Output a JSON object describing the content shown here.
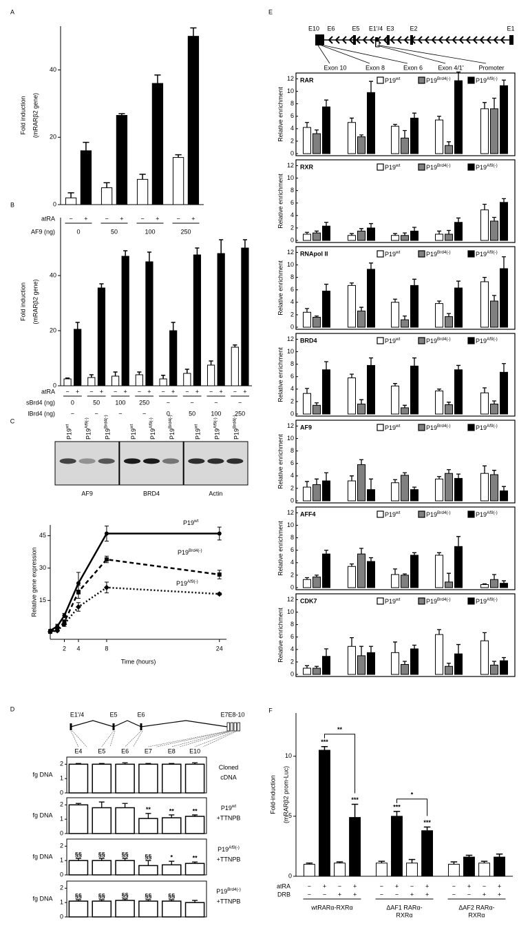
{
  "panel_labels": [
    "A",
    "B",
    "C",
    "D",
    "E",
    "F"
  ],
  "chart_data": [
    {
      "type": "bar",
      "y_label": [
        "Fold induction",
        "(mRARβ2 gene)"
      ],
      "ylim": [
        0,
        53
      ],
      "yticks": [
        0,
        20,
        40
      ],
      "series": [
        {
          "color": "#ffffff",
          "values": [
            2,
            5,
            7.5,
            14
          ],
          "errors": [
            1.5,
            1.5,
            1.5,
            0.8
          ]
        },
        {
          "color": "#000000",
          "values": [
            16,
            26.5,
            36,
            50
          ],
          "errors": [
            2.5,
            0.5,
            2.5,
            2.5
          ]
        }
      ],
      "rows": [
        {
          "label": "atRA",
          "cells": [
            "−",
            "+",
            "−",
            "+",
            "−",
            "+",
            "−",
            "+"
          ]
        },
        {
          "label": "AF9 (ng)",
          "groups": [
            "0",
            "50",
            "100",
            "250"
          ]
        }
      ]
    },
    {
      "type": "bar",
      "y_label": [
        "Fold induction",
        "(mRARβ2 gene)"
      ],
      "ylim": [
        0,
        61
      ],
      "yticks": [
        0,
        20,
        40
      ],
      "series": [
        {
          "color": "#ffffff",
          "values": [
            2.5,
            3,
            3.5,
            4,
            2.5,
            4.5,
            7.5,
            14
          ],
          "errors": [
            0.3,
            1,
            1.5,
            1,
            1.3,
            1.5,
            1.5,
            0.8
          ]
        },
        {
          "color": "#000000",
          "values": [
            20.5,
            35.5,
            47,
            45,
            20,
            47.5,
            48,
            50
          ],
          "errors": [
            2.5,
            1.5,
            2,
            3.5,
            3,
            2.5,
            5,
            3
          ]
        }
      ],
      "rows": [
        {
          "label": "atRA",
          "cells": [
            "−",
            "+",
            "−",
            "+",
            "−",
            "+",
            "−",
            "+",
            "−",
            "+",
            "−",
            "+",
            "−",
            "+",
            "−",
            "+"
          ]
        },
        {
          "label": "sBrd4 (ng)",
          "groups": [
            "0",
            "50",
            "100",
            "250",
            "−",
            "−",
            "−",
            "−"
          ]
        },
        {
          "label": "lBrd4 (ng)",
          "groups": [
            "−",
            "−",
            "−",
            "−",
            "0",
            "50",
            "100",
            "250"
          ]
        }
      ]
    },
    {
      "type": "line",
      "blot": {
        "lanes": [
          {
            "name": "P19",
            "superscript": "wt"
          },
          {
            "name": "P19",
            "superscript": "Af9(-)"
          },
          {
            "name": "P19",
            "superscript": "Brd4(-)"
          }
        ],
        "panels": [
          "AF9",
          "BRD4",
          "Actin"
        ]
      },
      "x": [
        0,
        1,
        2,
        4,
        8,
        24
      ],
      "xlim": [
        0,
        25
      ],
      "xticks": [
        2,
        4,
        8,
        24
      ],
      "ylim": [
        -3,
        50
      ],
      "yticks": [
        15,
        30,
        45
      ],
      "x_label": "Time (hours)",
      "y_label": "Relative gene expression",
      "series": [
        {
          "name": "P19",
          "superscript": "wt",
          "color": "#000000",
          "dash": "solid",
          "marker": "circle",
          "values": [
            1,
            3,
            8,
            23,
            46,
            46
          ],
          "errors": [
            0.5,
            1,
            1,
            5,
            3.5,
            3
          ]
        },
        {
          "name": "P19",
          "superscript": "Brd4(-)",
          "color": "#000000",
          "dash": "dashed",
          "marker": "square",
          "values": [
            0.5,
            1.5,
            5,
            19,
            34,
            27
          ],
          "errors": [
            0.3,
            0.5,
            1,
            3,
            1.5,
            2
          ]
        },
        {
          "name": "P19",
          "superscript": "Af9(-)",
          "color": "#000000",
          "dash": "dotted",
          "marker": "diamond",
          "values": [
            0.5,
            1,
            4,
            12,
            21,
            18
          ],
          "errors": [
            0.3,
            0.5,
            1,
            2,
            2.5,
            0.5
          ]
        }
      ]
    },
    {
      "type": "bar_rows",
      "gene_labels": [
        "E1'/4",
        "E5",
        "E6",
        "E7E8-10"
      ],
      "categories": [
        "E4",
        "E5",
        "E6",
        "E7",
        "E8",
        "E10"
      ],
      "y_label": "fg DNA",
      "ylim": [
        0,
        2.4
      ],
      "yticks": [
        0,
        1,
        2
      ],
      "rows": [
        {
          "label": {
            "name": "Cloned",
            "suffix": "cDNA"
          },
          "values": [
            2,
            2,
            2,
            2,
            2,
            2
          ],
          "errors": [
            0.05,
            0.05,
            0.1,
            0.05,
            0.05,
            0.1
          ]
        },
        {
          "label": {
            "name": "P19",
            "superscript": "wt",
            "suffix": "+TTNPB"
          },
          "values": [
            2,
            1.8,
            1.8,
            1.05,
            1.1,
            1.2
          ],
          "errors": [
            0.1,
            0.4,
            0.3,
            0.35,
            0.2,
            0.1
          ],
          "annotations": [
            null,
            null,
            null,
            "**",
            "**",
            "**"
          ]
        },
        {
          "label": {
            "name": "P19",
            "superscript": "Af9(-)",
            "suffix": "+TTNPB"
          },
          "values": [
            1,
            1,
            1,
            0.65,
            0.7,
            0.8
          ],
          "errors": [
            0.15,
            0.15,
            0.15,
            0.35,
            0.25,
            0.1
          ],
          "annotations": [
            "§§",
            "§§",
            "§§",
            "§§",
            "*",
            "**"
          ]
        },
        {
          "label": {
            "name": "P19",
            "superscript": "Brd4(-)",
            "suffix": "+TTNPB"
          },
          "values": [
            1.1,
            1.1,
            1.15,
            1.1,
            1.1,
            1.0
          ],
          "errors": [
            0.1,
            0.1,
            0.1,
            0.1,
            0.1,
            0.15
          ],
          "annotations": [
            "§§",
            "§§",
            "§§",
            "§§",
            "§§",
            null
          ]
        }
      ]
    },
    {
      "type": "grouped_bar_panels",
      "gene_labels": [
        "E10",
        "E6",
        "E5",
        "E1'/4",
        "E3",
        "E2",
        "E1"
      ],
      "categories": [
        "Exon 10",
        "Exon 8",
        "Exon 6",
        "Exon 4/1'",
        "Promoter"
      ],
      "y_label": "Relative enrichment",
      "ylim": [
        0,
        12.6
      ],
      "yticks": [
        0,
        2,
        4,
        6,
        8,
        10,
        12
      ],
      "series": [
        {
          "name": "P19",
          "superscript": "wt",
          "color": "#ffffff"
        },
        {
          "name": "P19",
          "superscript": "Brd4(-)",
          "color": "#808080"
        },
        {
          "name": "P19",
          "superscript": "Af9(-)",
          "color": "#000000"
        }
      ],
      "panels": [
        {
          "title": "RAR",
          "values": [
            [
              4.2,
              5,
              4.4,
              5.4,
              7.2
            ],
            [
              3.2,
              2.7,
              2.5,
              1.3,
              7.2
            ],
            [
              7.5,
              9.8,
              5.7,
              11.7,
              10.9
            ]
          ],
          "errors": [
            [
              0.8,
              0.7,
              0.3,
              0.6,
              1
            ],
            [
              0.6,
              0.3,
              1.2,
              0.6,
              1.7
            ],
            [
              1.1,
              1.8,
              0.8,
              1.4,
              0.9
            ]
          ]
        },
        {
          "title": "RXR",
          "values": [
            [
              1,
              0.8,
              0.8,
              1,
              4.9
            ],
            [
              1.2,
              1.5,
              0.8,
              1,
              3.1
            ],
            [
              2.3,
              2,
              1.5,
              2.9,
              6.1
            ]
          ],
          "errors": [
            [
              0.3,
              0.3,
              0.3,
              0.5,
              0.9
            ],
            [
              0.3,
              0.4,
              0.4,
              0.6,
              0.6
            ],
            [
              0.6,
              0.7,
              0.6,
              0.7,
              0.6
            ]
          ]
        },
        {
          "title": "RNApol II",
          "values": [
            [
              2.4,
              6.7,
              4,
              3.8,
              7.3
            ],
            [
              1.6,
              2.6,
              1.2,
              1.7,
              4.2
            ],
            [
              5.8,
              9.3,
              6.7,
              6.3,
              9.4
            ]
          ],
          "errors": [
            [
              0.6,
              0.4,
              0.5,
              0.4,
              0.7
            ],
            [
              0.2,
              0.6,
              0.6,
              0.5,
              0.9
            ],
            [
              1.1,
              1,
              1,
              1.1,
              1.9
            ]
          ]
        },
        {
          "title": "BRD4",
          "values": [
            [
              3.3,
              5.8,
              4.5,
              3.7,
              3.4
            ],
            [
              1.4,
              1.6,
              1,
              1.5,
              1.6
            ],
            [
              7.1,
              7.8,
              7.7,
              7.1,
              6.7
            ]
          ],
          "errors": [
            [
              0.8,
              0.6,
              0.4,
              0.3,
              0.8
            ],
            [
              0.4,
              0.7,
              0.4,
              0.4,
              0.5
            ],
            [
              1.3,
              1.2,
              1.3,
              0.7,
              1.4
            ]
          ]
        },
        {
          "title": "AF9",
          "values": [
            [
              2.2,
              3.2,
              2.9,
              3.5,
              4.4
            ],
            [
              2.6,
              5.8,
              4.1,
              4.4,
              4.2
            ],
            [
              3.2,
              1.8,
              1.8,
              3.6,
              1.6
            ]
          ],
          "errors": [
            [
              0.9,
              0.8,
              0.5,
              0.4,
              1.2
            ],
            [
              0.9,
              0.8,
              0.4,
              0.6,
              0.7
            ],
            [
              1.3,
              1.7,
              0.4,
              0.7,
              0.7
            ]
          ]
        },
        {
          "title": "AFF4",
          "values": [
            [
              1.3,
              3.4,
              2.1,
              5.2,
              0.5
            ],
            [
              1.7,
              5.4,
              2,
              0.9,
              1.3
            ],
            [
              5.4,
              4.2,
              5.2,
              6.6,
              0.7
            ]
          ],
          "errors": [
            [
              0.3,
              0.4,
              0.9,
              0.4,
              0.1
            ],
            [
              0.3,
              0.9,
              0.2,
              1.4,
              0.8
            ],
            [
              0.6,
              0.6,
              0.4,
              1.6,
              0.4
            ]
          ]
        },
        {
          "title": "CDK7",
          "values": [
            [
              1,
              4.5,
              3.5,
              6.4,
              5.4
            ],
            [
              1,
              3,
              1.6,
              1.3,
              1.5
            ],
            [
              2.9,
              3.5,
              4.1,
              3.3,
              2.2
            ]
          ],
          "errors": [
            [
              0.4,
              1.4,
              1.7,
              0.8,
              1.3
            ],
            [
              0.3,
              1.5,
              0.5,
              0.5,
              0.6
            ],
            [
              1.2,
              1,
              0.6,
              1.5,
              0.5
            ]
          ]
        }
      ]
    },
    {
      "type": "bar",
      "y_label": [
        "Fold-induction",
        "(mRARβ2 prom-Luc)"
      ],
      "ylim": [
        0,
        13.6
      ],
      "yticks": [
        0,
        5,
        10
      ],
      "series": [
        {
          "color": "#ffffff",
          "values": [
            1,
            1.1,
            1
          ],
          "errors": [
            0.1,
            0.15,
            0.2
          ]
        },
        {
          "color": "#000000",
          "values": [
            10.5,
            5,
            1.6
          ],
          "errors": [
            0.3,
            0.4,
            0.15
          ],
          "significance": [
            "***",
            "***",
            null
          ]
        },
        {
          "color": "#ffffff",
          "values": [
            1.1,
            1.1,
            1.1
          ],
          "errors": [
            0.1,
            0.3,
            0.15
          ]
        },
        {
          "color": "#000000",
          "values": [
            4.9,
            3.8,
            1.6
          ],
          "errors": [
            1.1,
            0.3,
            0.25
          ],
          "significance": [
            "***",
            "***",
            null
          ]
        }
      ],
      "brackets": [
        "**",
        "*"
      ],
      "rows": [
        {
          "label": "atRA",
          "cells": [
            "−",
            "+",
            "−",
            "+",
            "−",
            "+",
            "−",
            "+",
            "−",
            "+",
            "−",
            "+"
          ]
        },
        {
          "label": "DRB",
          "cells": [
            "−",
            "−",
            "+",
            "+",
            "−",
            "−",
            "+",
            "+",
            "−",
            "−",
            "+",
            "+"
          ]
        },
        {
          "groups": [
            [
              "wtRARα-RXRα"
            ],
            [
              "ΔAF1 RARα-",
              "RXRα"
            ],
            [
              "ΔAF2 RARα-",
              "RXRα"
            ]
          ]
        }
      ]
    }
  ]
}
